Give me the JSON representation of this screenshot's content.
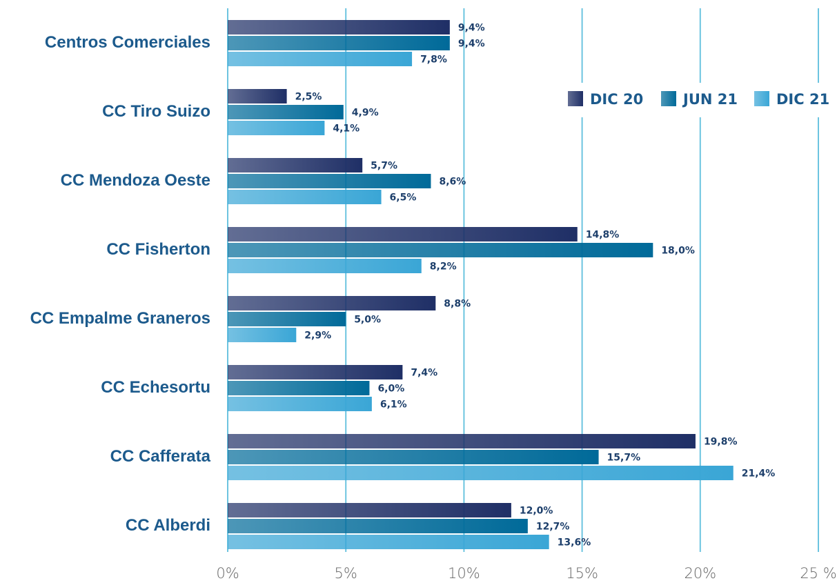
{
  "chart_data": {
    "type": "bar",
    "orientation": "horizontal",
    "categories": [
      "Centros Comerciales",
      "CC Tiro Suizo",
      "CC Mendoza Oeste",
      "CC Fisherton",
      "CC Empalme Graneros",
      "CC Echesortu",
      "CC Cafferata",
      "CC Alberdi"
    ],
    "series": [
      {
        "name": "DIC 20",
        "color": "#1f2f66",
        "values": [
          9.4,
          2.5,
          5.7,
          14.8,
          8.8,
          7.4,
          19.8,
          12.0
        ],
        "value_labels": [
          "9,4%",
          "2,5%",
          "5,7%",
          "14,8%",
          "8,8%",
          "7,4%",
          "19,8%",
          "12,0%"
        ]
      },
      {
        "name": "JUN 21",
        "color": "#006a99",
        "values": [
          9.4,
          4.9,
          8.6,
          18.0,
          5.0,
          6.0,
          15.7,
          12.7
        ],
        "value_labels": [
          "9,4%",
          "4,9%",
          "8,6%",
          "18,0%",
          "5,0%",
          "6,0%",
          "15,7%",
          "12,7%"
        ]
      },
      {
        "name": "DIC 21",
        "color": "#3aa6d6",
        "values": [
          7.8,
          4.1,
          6.5,
          8.2,
          2.9,
          6.1,
          21.4,
          13.6
        ],
        "value_labels": [
          "7,8%",
          "4,1%",
          "6,5%",
          "8,2%",
          "2,9%",
          "6,1%",
          "21,4%",
          "13,6%"
        ]
      }
    ],
    "xlim": [
      0,
      25
    ],
    "xticks": [
      {
        "value": 0,
        "label": "0%"
      },
      {
        "value": 5,
        "label": "5%"
      },
      {
        "value": 10,
        "label": "10%"
      },
      {
        "value": 15,
        "label": "15%"
      },
      {
        "value": 20,
        "label": "20%"
      },
      {
        "value": 25,
        "label": "25 %"
      }
    ],
    "grid": true,
    "legend": "upper right"
  }
}
